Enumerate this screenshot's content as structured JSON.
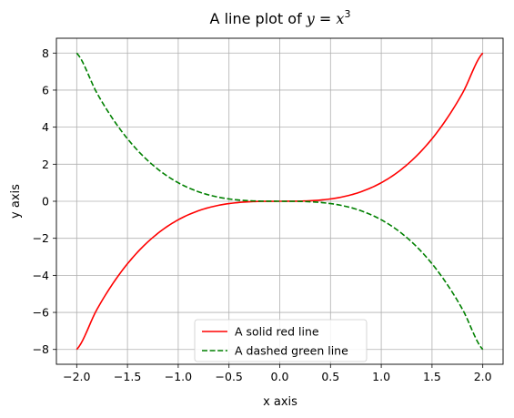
{
  "chart_data": {
    "type": "line",
    "title": {
      "prefix": "A line plot of ",
      "y_var": "y",
      "equals": " = ",
      "x_var": "x",
      "exponent": "3"
    },
    "xlabel": "x axis",
    "ylabel": "y axis",
    "xlim": [
      -2.2,
      2.2
    ],
    "ylim": [
      -8.8,
      8.8
    ],
    "xticks": [
      -2.0,
      -1.5,
      -1.0,
      -0.5,
      0.0,
      0.5,
      1.0,
      1.5,
      2.0
    ],
    "xtick_labels": [
      "−2.0",
      "−1.5",
      "−1.0",
      "−0.5",
      "0.0",
      "0.5",
      "1.0",
      "1.5",
      "2.0"
    ],
    "yticks": [
      -8,
      -6,
      -4,
      -2,
      0,
      2,
      4,
      6,
      8
    ],
    "ytick_labels": [
      "−8",
      "−6",
      "−4",
      "−2",
      "0",
      "2",
      "4",
      "6",
      "8"
    ],
    "grid": true,
    "legend_position": "lower-center",
    "x": [
      -2.0,
      -1.8,
      -1.6,
      -1.4,
      -1.2,
      -1.0,
      -0.8,
      -0.6,
      -0.4,
      -0.2,
      0.0,
      0.2,
      0.4,
      0.6,
      0.8,
      1.0,
      1.2,
      1.4,
      1.6,
      1.8,
      2.0
    ],
    "series": [
      {
        "name": "A solid red line",
        "color": "#ff0000",
        "style": "solid",
        "values": [
          -8.0,
          -5.832,
          -4.096,
          -2.744,
          -1.728,
          -1.0,
          -0.512,
          -0.216,
          -0.064,
          -0.008,
          0.0,
          0.008,
          0.064,
          0.216,
          0.512,
          1.0,
          1.728,
          2.744,
          4.096,
          5.832,
          8.0
        ]
      },
      {
        "name": "A dashed green line",
        "color": "#008000",
        "style": "dashed",
        "values": [
          8.0,
          5.832,
          4.096,
          2.744,
          1.728,
          1.0,
          0.512,
          0.216,
          0.064,
          0.008,
          0.0,
          -0.008,
          -0.064,
          -0.216,
          -0.512,
          -1.0,
          -1.728,
          -2.744,
          -4.096,
          -5.832,
          -8.0
        ]
      }
    ]
  }
}
